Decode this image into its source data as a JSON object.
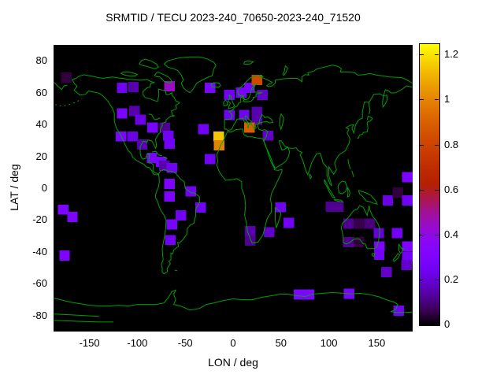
{
  "title": "SRMTID / TECU 2023-240_70650-2023-240_71520",
  "axes": {
    "xlabel": "LON / deg",
    "ylabel": "LAT / deg",
    "x_ticks": [
      -150,
      -100,
      -50,
      0,
      50,
      100,
      150
    ],
    "y_ticks": [
      80,
      60,
      40,
      20,
      0,
      -20,
      -40,
      -60,
      -80
    ],
    "x_range": [
      -187.5,
      187.5
    ],
    "y_range": [
      -90,
      90
    ]
  },
  "colorbar": {
    "min": 0,
    "max": 1.25,
    "ticks": [
      0,
      0.2,
      0.4,
      0.6,
      0.8,
      1,
      1.2
    ],
    "tick_labels": [
      "0",
      "0.2",
      "0.4",
      "0.6",
      "0.8",
      "1",
      "1.2"
    ]
  },
  "colors": {
    "background": "#ffffff",
    "plot_background": "#000000",
    "coastline": "#00a000",
    "text": "#000000"
  },
  "chart_data": {
    "type": "heatmap",
    "title": "SRMTID / TECU 2023-240_70650-2023-240_71520",
    "xlabel": "LON / deg",
    "ylabel": "LAT / deg",
    "value_unit": "TECU",
    "value_range": [
      0,
      1.25
    ],
    "palette": "gnuplot pm3d black-violet-magenta-red-orange-yellow",
    "cell_size_deg": {
      "lon": 11,
      "lat": 6.4
    },
    "cells": [
      {
        "lon": -174,
        "lat": 69.5,
        "v": 0.05
      },
      {
        "lon": -116,
        "lat": 63,
        "v": 0.25
      },
      {
        "lon": -104,
        "lat": 63.5,
        "v": 0.15
      },
      {
        "lon": -66.5,
        "lat": 64,
        "v": 0.45
      },
      {
        "lon": -116,
        "lat": 47,
        "v": 0.3
      },
      {
        "lon": -103,
        "lat": 48.5,
        "v": 0.15
      },
      {
        "lon": -97,
        "lat": 43,
        "v": 0.22
      },
      {
        "lon": -84,
        "lat": 38,
        "v": 0.28
      },
      {
        "lon": -71.5,
        "lat": 38,
        "v": 0.12
      },
      {
        "lon": -117,
        "lat": 32.5,
        "v": 0.3
      },
      {
        "lon": -105,
        "lat": 32.5,
        "v": 0.22
      },
      {
        "lon": -95,
        "lat": 27.5,
        "v": 0.15
      },
      {
        "lon": -67.8,
        "lat": 33,
        "v": 0.25
      },
      {
        "lon": -66.5,
        "lat": 28,
        "v": 0.25
      },
      {
        "lon": -84.7,
        "lat": 19,
        "v": 0.28
      },
      {
        "lon": -75.2,
        "lat": 16.5,
        "v": 0.28
      },
      {
        "lon": -71.9,
        "lat": 14,
        "v": 0.15
      },
      {
        "lon": -64,
        "lat": 12.7,
        "v": 0.25
      },
      {
        "lon": -66.5,
        "lat": 2.8,
        "v": 0.3
      },
      {
        "lon": -66.5,
        "lat": -5.2,
        "v": 0.3
      },
      {
        "lon": -44.2,
        "lat": -2,
        "v": 0.25
      },
      {
        "lon": -33.9,
        "lat": -12.2,
        "v": 0.25
      },
      {
        "lon": -54.5,
        "lat": -17,
        "v": 0.25
      },
      {
        "lon": -64,
        "lat": -22.7,
        "v": 0.28
      },
      {
        "lon": -65.7,
        "lat": -32.5,
        "v": 0.25
      },
      {
        "lon": -177.3,
        "lat": -13.5,
        "v": 0.3
      },
      {
        "lon": -167.8,
        "lat": -18,
        "v": 0.3
      },
      {
        "lon": -176,
        "lat": -42.3,
        "v": 0.3
      },
      {
        "lon": -31,
        "lat": 37,
        "v": 0.25
      },
      {
        "lon": -24,
        "lat": 18.3,
        "v": 0.25
      },
      {
        "lon": -15,
        "lat": 32.5,
        "v": 1.15
      },
      {
        "lon": -14.5,
        "lat": 27,
        "v": 1.0
      },
      {
        "lon": -24,
        "lat": 63,
        "v": 0.3
      },
      {
        "lon": -4,
        "lat": 58.5,
        "v": 0.25
      },
      {
        "lon": 8.5,
        "lat": 60,
        "v": 0.28
      },
      {
        "lon": 17,
        "lat": 63,
        "v": 0.28
      },
      {
        "lon": 30.5,
        "lat": 58.5,
        "v": 0.18
      },
      {
        "lon": 25,
        "lat": 68,
        "v": 0.82
      },
      {
        "lon": -4,
        "lat": 46,
        "v": 0.25
      },
      {
        "lon": 11.5,
        "lat": 46,
        "v": 0.25
      },
      {
        "lon": 25,
        "lat": 48,
        "v": 0.15
      },
      {
        "lon": 25,
        "lat": 43,
        "v": 0.15
      },
      {
        "lon": 17,
        "lat": 38,
        "v": 0.9
      },
      {
        "lon": 36.4,
        "lat": 33,
        "v": 0.18
      },
      {
        "lon": 18,
        "lat": -27,
        "v": 0.15
      },
      {
        "lon": 18,
        "lat": -33,
        "v": 0.12
      },
      {
        "lon": 37.6,
        "lat": -27.6,
        "v": 0.18
      },
      {
        "lon": 49.6,
        "lat": -12,
        "v": 0.25
      },
      {
        "lon": 58.3,
        "lat": -21.8,
        "v": 0.25
      },
      {
        "lon": 102,
        "lat": -11.7,
        "v": 0.12
      },
      {
        "lon": 110,
        "lat": -11.7,
        "v": 0.12
      },
      {
        "lon": 120.7,
        "lat": -22.3,
        "v": 0.12
      },
      {
        "lon": 132.2,
        "lat": -22.3,
        "v": 0.06
      },
      {
        "lon": 143,
        "lat": -22.3,
        "v": 0.1
      },
      {
        "lon": 120.2,
        "lat": -33.8,
        "v": 0.12
      },
      {
        "lon": 131.4,
        "lat": -33.8,
        "v": 0.05
      },
      {
        "lon": 152.1,
        "lat": -28.1,
        "v": 0.2
      },
      {
        "lon": 171.1,
        "lat": -28.1,
        "v": 0.25
      },
      {
        "lon": 152.9,
        "lat": -36.5,
        "v": 0.3
      },
      {
        "lon": 152.5,
        "lat": -41.9,
        "v": 0.25
      },
      {
        "lon": 182,
        "lat": -36.5,
        "v": 0.3
      },
      {
        "lon": 182,
        "lat": -42.9,
        "v": 0.25
      },
      {
        "lon": 161.6,
        "lat": -7.6,
        "v": 0.22
      },
      {
        "lon": 172,
        "lat": -2.7,
        "v": 0.05
      },
      {
        "lon": 182,
        "lat": -7.6,
        "v": 0.25
      },
      {
        "lon": 182,
        "lat": 7,
        "v": 0.3
      },
      {
        "lon": 160.3,
        "lat": -52.6,
        "v": 0.18
      },
      {
        "lon": 181,
        "lat": -48.2,
        "v": 0.18
      },
      {
        "lon": 172.8,
        "lat": -77,
        "v": 0.25
      },
      {
        "lon": 69,
        "lat": -66.8,
        "v": 0.3
      },
      {
        "lon": 79.3,
        "lat": -66.8,
        "v": 0.3
      },
      {
        "lon": 121,
        "lat": -66.3,
        "v": 0.28
      }
    ]
  }
}
